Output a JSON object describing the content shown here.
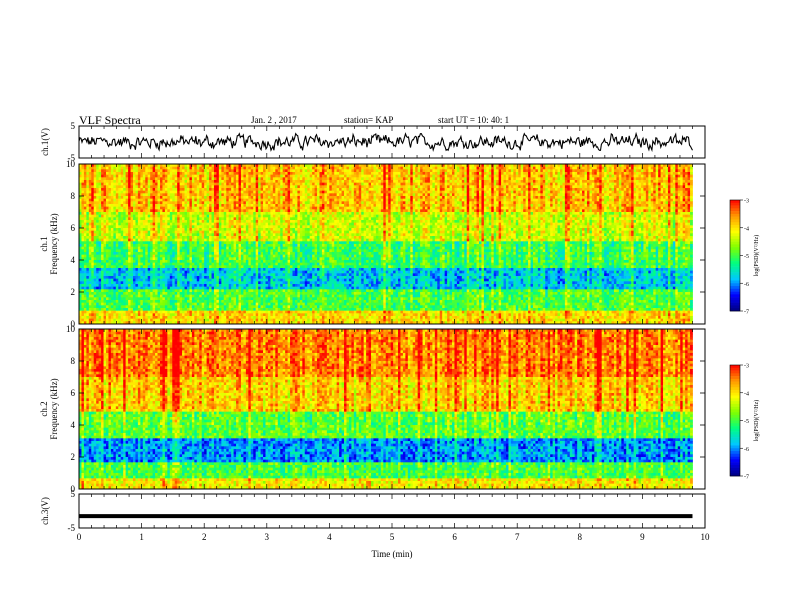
{
  "header": {
    "title": "VLF Spectra",
    "date": "Jan. 2 , 2017",
    "station": "station= KAP",
    "start": "start  UT =   10: 40: 1"
  },
  "chart_data": [
    {
      "type": "line",
      "panel": "ch1-waveform",
      "ylabel": "ch.1(V)",
      "ylim": [
        -5,
        5
      ],
      "yticks": [
        "5",
        "-5"
      ],
      "xlim": [
        0,
        10
      ],
      "series_description": "noisy waveform fluctuating roughly between -2 and +2 V",
      "x_extent_min": 9.8
    },
    {
      "type": "heatmap",
      "panel": "ch1-spectrogram",
      "ylabel": "ch.1\nFrequency (kHz)",
      "ylim": [
        0,
        10
      ],
      "yticks": [
        "0",
        "2",
        "4",
        "6",
        "8",
        "10"
      ],
      "xlim": [
        0,
        10
      ],
      "colorbar": {
        "label": "log(PSD)(V²/Hz)",
        "range": [
          -7,
          -3
        ],
        "ticks": [
          "-3",
          "-4",
          "-5",
          "-6",
          "-7"
        ]
      },
      "bands": [
        {
          "from_khz": 0,
          "to_khz": 0.8,
          "log_psd": -4.0
        },
        {
          "from_khz": 0.8,
          "to_khz": 2.2,
          "log_psd": -5.0
        },
        {
          "from_khz": 2.2,
          "to_khz": 3.5,
          "log_psd": -5.8
        },
        {
          "from_khz": 3.5,
          "to_khz": 5.2,
          "log_psd": -5.1
        },
        {
          "from_khz": 5.2,
          "to_khz": 7.0,
          "log_psd": -4.4
        },
        {
          "from_khz": 7.0,
          "to_khz": 10,
          "log_psd": -3.9
        }
      ]
    },
    {
      "type": "heatmap",
      "panel": "ch2-spectrogram",
      "ylabel": "ch.2\nFrequency (kHz)",
      "ylim": [
        0,
        10
      ],
      "yticks": [
        "0",
        "2",
        "4",
        "6",
        "8",
        "10"
      ],
      "xlim": [
        0,
        10
      ],
      "colorbar": {
        "label": "log(PSD)(V²/Hz)",
        "range": [
          -7,
          -3
        ],
        "ticks": [
          "-3",
          "-4",
          "-5",
          "-6",
          "-7"
        ]
      },
      "bands": [
        {
          "from_khz": 0,
          "to_khz": 0.6,
          "log_psd": -4.1
        },
        {
          "from_khz": 0.6,
          "to_khz": 1.6,
          "log_psd": -5.0
        },
        {
          "from_khz": 1.6,
          "to_khz": 3.2,
          "log_psd": -6.0
        },
        {
          "from_khz": 3.2,
          "to_khz": 4.8,
          "log_psd": -4.9
        },
        {
          "from_khz": 4.8,
          "to_khz": 7.0,
          "log_psd": -3.9
        },
        {
          "from_khz": 7.0,
          "to_khz": 10,
          "log_psd": -3.5
        }
      ]
    },
    {
      "type": "line",
      "panel": "ch3-waveform",
      "ylabel": "ch.3(V)",
      "ylim": [
        -5,
        5
      ],
      "yticks": [
        "5",
        "-5"
      ],
      "xlim": [
        0,
        10
      ],
      "constant_value": -1.5,
      "x_extent_min": 9.8
    }
  ],
  "xaxis": {
    "label": "Time (min)",
    "ticks": [
      "0",
      "1",
      "2",
      "3",
      "4",
      "5",
      "6",
      "7",
      "8",
      "9",
      "10"
    ]
  },
  "colors": {
    "colormap": [
      "#000080",
      "#0000ff",
      "#00c8ff",
      "#00ff80",
      "#80ff00",
      "#ffff00",
      "#ff9600",
      "#ff0000"
    ]
  }
}
